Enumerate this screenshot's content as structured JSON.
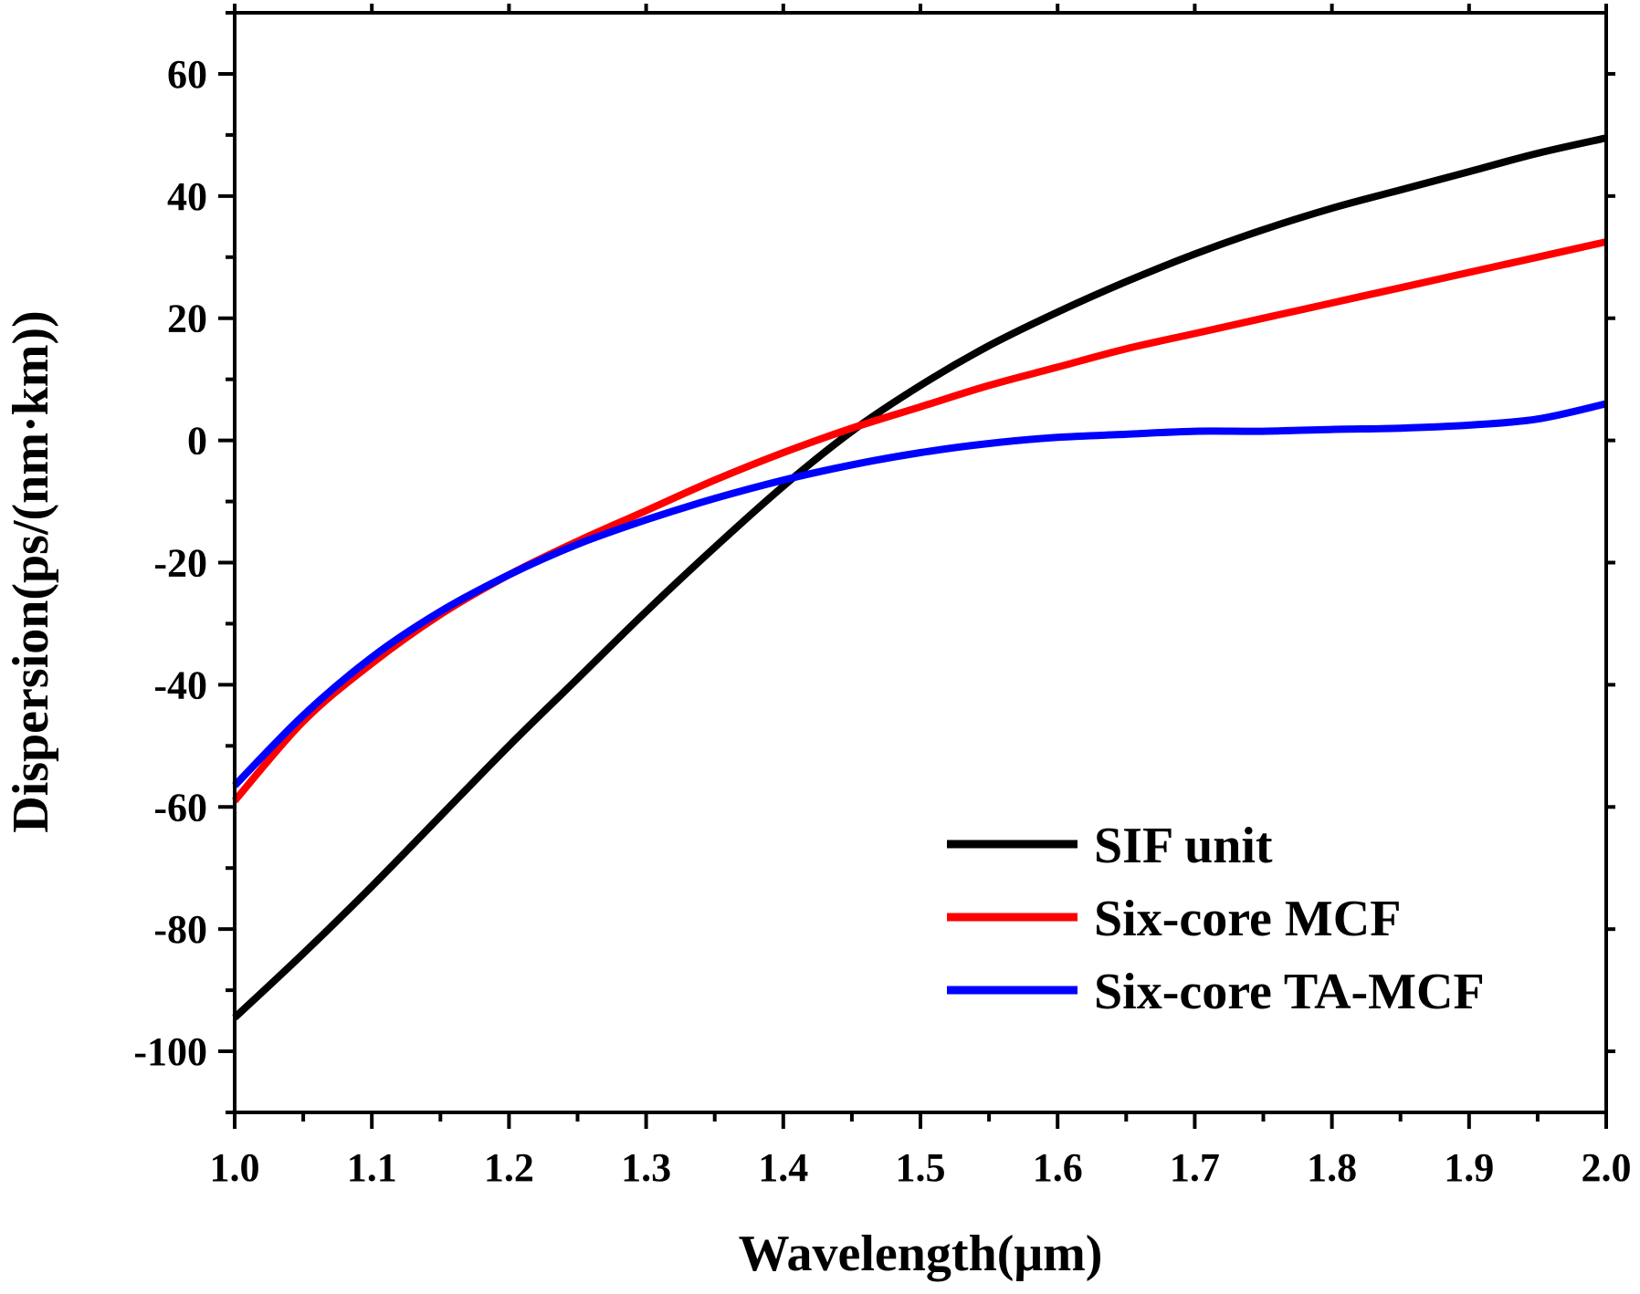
{
  "chart_data": {
    "type": "line",
    "title": "",
    "xlabel": "Wavelength(μm)",
    "ylabel": "Dispersion(ps/(nm·km))",
    "xlim": [
      1.0,
      2.0
    ],
    "ylim": [
      -110,
      70
    ],
    "x_ticks": [
      1.0,
      1.1,
      1.2,
      1.3,
      1.4,
      1.5,
      1.6,
      1.7,
      1.8,
      1.9,
      2.0
    ],
    "x_tick_labels": [
      "1.0",
      "1.1",
      "1.2",
      "1.3",
      "1.4",
      "1.5",
      "1.6",
      "1.7",
      "1.8",
      "1.9",
      "2.0"
    ],
    "y_ticks": [
      -100,
      -80,
      -60,
      -40,
      -20,
      0,
      20,
      40,
      60
    ],
    "y_tick_labels": [
      "-100",
      "-80",
      "-60",
      "-40",
      "-20",
      "0",
      "20",
      "40",
      "60"
    ],
    "grid": false,
    "legend_position": "bottom-right",
    "series": [
      {
        "name": "SIF unit",
        "color": "#000000",
        "x": [
          1.0,
          1.05,
          1.1,
          1.15,
          1.2,
          1.25,
          1.3,
          1.35,
          1.4,
          1.45,
          1.5,
          1.55,
          1.6,
          1.65,
          1.7,
          1.75,
          1.8,
          1.85,
          1.9,
          1.95,
          2.0
        ],
        "y": [
          -94.5,
          -84,
          -73,
          -61.5,
          -50,
          -39,
          -28,
          -17.5,
          -7.5,
          1.5,
          9,
          15.5,
          21,
          26,
          30.5,
          34.5,
          38,
          41,
          44,
          47,
          49.5
        ]
      },
      {
        "name": "Six-core MCF",
        "color": "#ff0000",
        "x": [
          1.0,
          1.05,
          1.1,
          1.15,
          1.2,
          1.25,
          1.3,
          1.35,
          1.4,
          1.45,
          1.5,
          1.55,
          1.6,
          1.65,
          1.7,
          1.75,
          1.8,
          1.85,
          1.9,
          1.95,
          2.0
        ],
        "y": [
          -59,
          -46,
          -36.5,
          -28.5,
          -22,
          -16.5,
          -11.5,
          -6.5,
          -2,
          2,
          5.5,
          9,
          12,
          15,
          17.5,
          20,
          22.5,
          25,
          27.5,
          30,
          32.5
        ]
      },
      {
        "name": "Six-core TA-MCF",
        "color": "#0000ff",
        "x": [
          1.0,
          1.05,
          1.1,
          1.15,
          1.2,
          1.25,
          1.3,
          1.35,
          1.4,
          1.45,
          1.5,
          1.55,
          1.6,
          1.65,
          1.7,
          1.75,
          1.8,
          1.85,
          1.9,
          1.95,
          2.0
        ],
        "y": [
          -56.5,
          -45,
          -35.5,
          -28,
          -22,
          -17,
          -13,
          -9.5,
          -6.5,
          -4,
          -2,
          -0.5,
          0.5,
          1,
          1.5,
          1.5,
          1.8,
          2,
          2.5,
          3.5,
          6
        ]
      }
    ]
  }
}
